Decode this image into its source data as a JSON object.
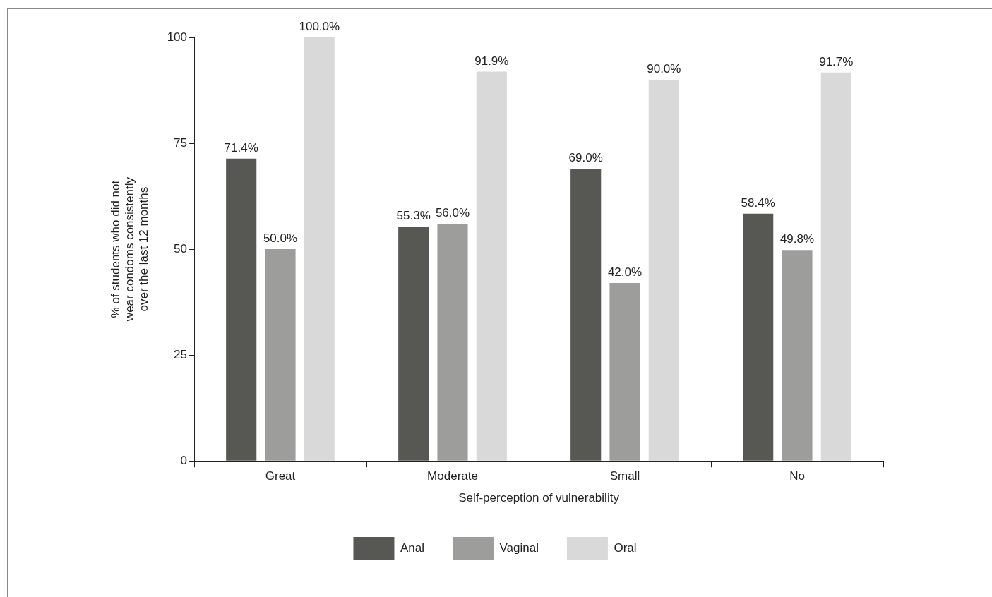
{
  "chart_data": {
    "type": "bar",
    "xlabel": "Self-perception of vulnerability",
    "ylabel": "% of students who did not\nwear condoms consistently\nover the last 12 months",
    "categories": [
      "Great",
      "Moderate",
      "Small",
      "No"
    ],
    "series": [
      {
        "name": "Anal",
        "color": "#575754",
        "values": [
          71.4,
          55.3,
          69.0,
          58.4
        ],
        "value_labels": [
          "71.4%",
          "55.3%",
          "69.0%",
          "58.4%"
        ]
      },
      {
        "name": "Vaginal",
        "color": "#9d9d9b",
        "values": [
          50.0,
          56.0,
          42.0,
          49.8
        ],
        "value_labels": [
          "50.0%",
          "56.0%",
          "42.0%",
          "49.8%"
        ]
      },
      {
        "name": "Oral",
        "color": "#d9d9d9",
        "values": [
          100.0,
          91.9,
          90.0,
          91.7
        ],
        "value_labels": [
          "100.0%",
          "91.9%",
          "90.0%",
          "91.7%"
        ]
      }
    ],
    "ylim": [
      0,
      100
    ],
    "yticks": [
      0,
      25,
      50,
      75,
      100
    ],
    "grid": false,
    "legend": "bottom"
  }
}
